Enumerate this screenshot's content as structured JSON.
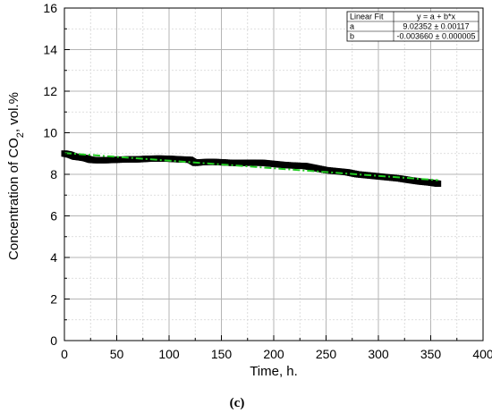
{
  "chart_data": {
    "type": "scatter",
    "xlabel": "Time, h.",
    "ylabel_main": "Concentration of CO",
    "ylabel_sub": "2",
    "ylabel_tail": ", vol.%",
    "xlim": [
      0,
      400
    ],
    "ylim": [
      0,
      16
    ],
    "x_ticks": [
      "0",
      "50",
      "100",
      "150",
      "200",
      "250",
      "300",
      "350",
      "400"
    ],
    "y_ticks": [
      "0",
      "2",
      "4",
      "6",
      "8",
      "10",
      "12",
      "14",
      "16"
    ],
    "grid": true,
    "panel_label": "(c)",
    "series": [
      {
        "marker": "square",
        "color": "#000000",
        "x": [
          0,
          5,
          10,
          15,
          20,
          25,
          30,
          40,
          50,
          60,
          70,
          80,
          90,
          100,
          110,
          120,
          125,
          130,
          140,
          150,
          160,
          170,
          180,
          190,
          200,
          210,
          220,
          230,
          240,
          250,
          260,
          270,
          280,
          290,
          300,
          310,
          320,
          330,
          340,
          350,
          357
        ],
        "y": [
          9.0,
          8.95,
          8.85,
          8.82,
          8.78,
          8.7,
          8.68,
          8.68,
          8.7,
          8.72,
          8.72,
          8.75,
          8.76,
          8.75,
          8.72,
          8.7,
          8.55,
          8.58,
          8.6,
          8.58,
          8.55,
          8.55,
          8.56,
          8.55,
          8.5,
          8.45,
          8.42,
          8.4,
          8.3,
          8.2,
          8.15,
          8.1,
          8.0,
          7.95,
          7.9,
          7.85,
          7.8,
          7.72,
          7.65,
          7.6,
          7.55
        ]
      },
      {
        "type": "line",
        "style": "dash-dot",
        "color": "#22cc22",
        "x": [
          0,
          357
        ],
        "y": [
          9.02352,
          7.7169
        ]
      }
    ],
    "fit_table": {
      "rows": [
        [
          "Linear Fit",
          "y = a + b*x"
        ],
        [
          "a",
          "9.02352 ± 0.00117"
        ],
        [
          "b",
          "-0.003660 ± 0.000005"
        ]
      ]
    }
  }
}
